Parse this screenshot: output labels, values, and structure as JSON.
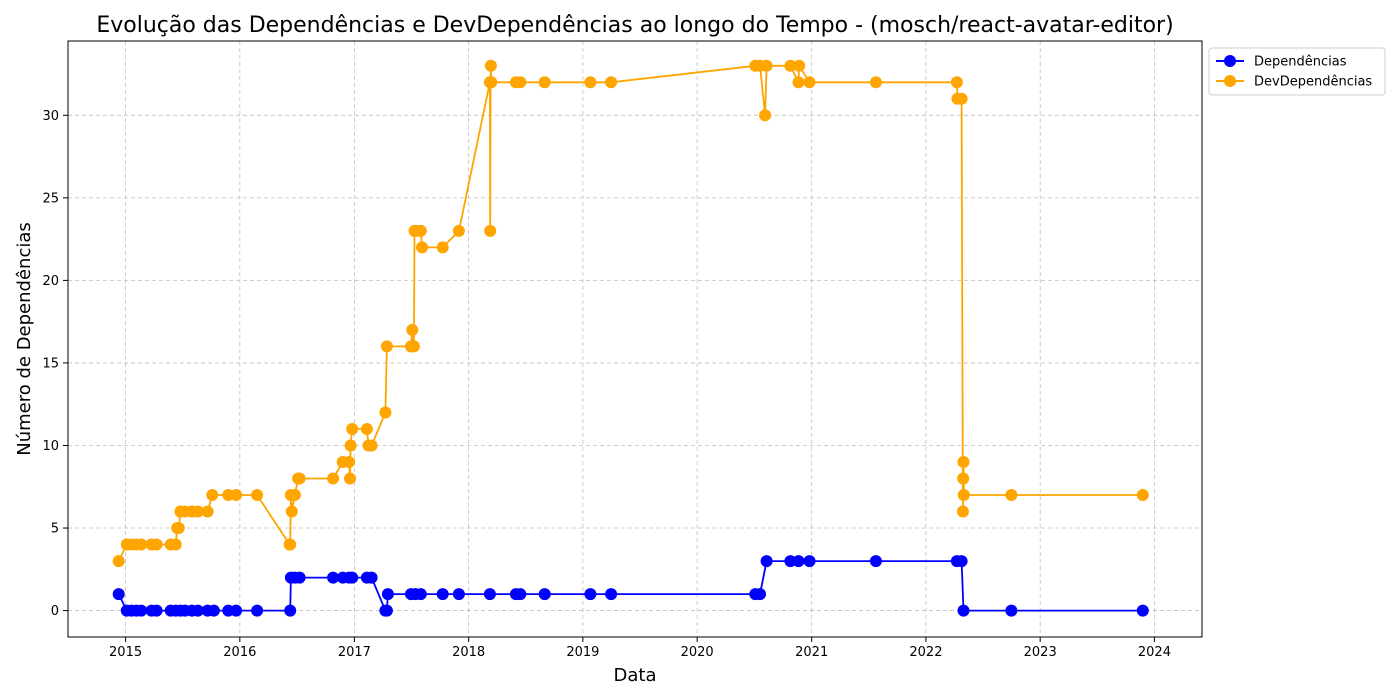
{
  "chart_data": {
    "type": "line",
    "title": "Evolução das Dependências e DevDependências ao longo do Tempo - (mosch/react-avatar-editor)",
    "xlabel": "Data",
    "ylabel": "Número de Dependências",
    "xlim": [
      "2014-07-01",
      "2024-06-01"
    ],
    "ylim": [
      -1.6,
      34.5
    ],
    "x_ticks": [
      "2015",
      "2016",
      "2017",
      "2018",
      "2019",
      "2020",
      "2021",
      "2022",
      "2023",
      "2024"
    ],
    "y_ticks": [
      0,
      5,
      10,
      15,
      20,
      25,
      30
    ],
    "grid": true,
    "legend_position": "outside-top-right",
    "series": [
      {
        "name": "Dependências",
        "color": "#0000ff",
        "points": [
          [
            "2014-12-10",
            1
          ],
          [
            "2015-01-05",
            0
          ],
          [
            "2015-01-20",
            0
          ],
          [
            "2015-02-05",
            0
          ],
          [
            "2015-02-20",
            0
          ],
          [
            "2015-03-25",
            0
          ],
          [
            "2015-04-10",
            0
          ],
          [
            "2015-05-25",
            0
          ],
          [
            "2015-06-10",
            0
          ],
          [
            "2015-06-25",
            0
          ],
          [
            "2015-07-10",
            0
          ],
          [
            "2015-08-01",
            0
          ],
          [
            "2015-08-20",
            0
          ],
          [
            "2015-09-20",
            0
          ],
          [
            "2015-10-10",
            0
          ],
          [
            "2015-11-25",
            0
          ],
          [
            "2015-12-20",
            0
          ],
          [
            "2016-02-25",
            0
          ],
          [
            "2016-06-10",
            0
          ],
          [
            "2016-06-12",
            2
          ],
          [
            "2016-06-25",
            2
          ],
          [
            "2016-07-10",
            2
          ],
          [
            "2016-10-25",
            2
          ],
          [
            "2016-11-25",
            2
          ],
          [
            "2016-12-15",
            2
          ],
          [
            "2016-12-25",
            2
          ],
          [
            "2017-02-10",
            2
          ],
          [
            "2017-02-25",
            2
          ],
          [
            "2017-04-10",
            0
          ],
          [
            "2017-04-15",
            0
          ],
          [
            "2017-04-18",
            1
          ],
          [
            "2017-07-01",
            1
          ],
          [
            "2017-07-15",
            1
          ],
          [
            "2017-08-01",
            1
          ],
          [
            "2017-10-10",
            1
          ],
          [
            "2017-12-01",
            1
          ],
          [
            "2018-03-10",
            1
          ],
          [
            "2018-06-01",
            1
          ],
          [
            "2018-06-15",
            1
          ],
          [
            "2018-09-01",
            1
          ],
          [
            "2019-01-25",
            1
          ],
          [
            "2019-04-01",
            1
          ],
          [
            "2020-07-05",
            1
          ],
          [
            "2020-07-20",
            1
          ],
          [
            "2020-08-10",
            3
          ],
          [
            "2020-10-25",
            3
          ],
          [
            "2020-11-20",
            3
          ],
          [
            "2020-12-25",
            3
          ],
          [
            "2021-07-25",
            3
          ],
          [
            "2022-04-10",
            3
          ],
          [
            "2022-04-25",
            3
          ],
          [
            "2022-05-01",
            0
          ],
          [
            "2022-10-01",
            0
          ],
          [
            "2023-11-25",
            0
          ]
        ]
      },
      {
        "name": "DevDependências",
        "color": "#ffa500",
        "points": [
          [
            "2014-12-10",
            3
          ],
          [
            "2015-01-05",
            4
          ],
          [
            "2015-01-20",
            4
          ],
          [
            "2015-02-05",
            4
          ],
          [
            "2015-02-20",
            4
          ],
          [
            "2015-03-25",
            4
          ],
          [
            "2015-04-10",
            4
          ],
          [
            "2015-05-25",
            4
          ],
          [
            "2015-06-10",
            4
          ],
          [
            "2015-06-15",
            5
          ],
          [
            "2015-06-20",
            5
          ],
          [
            "2015-06-25",
            6
          ],
          [
            "2015-07-10",
            6
          ],
          [
            "2015-08-01",
            6
          ],
          [
            "2015-08-20",
            6
          ],
          [
            "2015-09-20",
            6
          ],
          [
            "2015-10-05",
            7
          ],
          [
            "2015-11-25",
            7
          ],
          [
            "2015-12-20",
            7
          ],
          [
            "2016-02-25",
            7
          ],
          [
            "2016-06-08",
            4
          ],
          [
            "2016-06-10",
            4
          ],
          [
            "2016-06-12",
            7
          ],
          [
            "2016-06-15",
            6
          ],
          [
            "2016-06-25",
            7
          ],
          [
            "2016-07-05",
            8
          ],
          [
            "2016-07-10",
            8
          ],
          [
            "2016-10-25",
            8
          ],
          [
            "2016-11-25",
            9
          ],
          [
            "2016-12-15",
            9
          ],
          [
            "2016-12-18",
            8
          ],
          [
            "2016-12-20",
            10
          ],
          [
            "2016-12-25",
            11
          ],
          [
            "2017-02-10",
            11
          ],
          [
            "2017-02-15",
            10
          ],
          [
            "2017-02-25",
            10
          ],
          [
            "2017-04-10",
            12
          ],
          [
            "2017-04-15",
            16
          ],
          [
            "2017-07-01",
            16
          ],
          [
            "2017-07-05",
            17
          ],
          [
            "2017-07-10",
            16
          ],
          [
            "2017-07-12",
            23
          ],
          [
            "2017-07-20",
            23
          ],
          [
            "2017-08-01",
            23
          ],
          [
            "2017-08-05",
            22
          ],
          [
            "2017-10-10",
            22
          ],
          [
            "2017-12-01",
            23
          ],
          [
            "2018-03-10",
            32
          ],
          [
            "2018-03-11",
            23
          ],
          [
            "2018-03-12",
            32
          ],
          [
            "2018-03-13",
            33
          ],
          [
            "2018-03-14",
            32
          ],
          [
            "2018-06-01",
            32
          ],
          [
            "2018-06-15",
            32
          ],
          [
            "2018-09-01",
            32
          ],
          [
            "2019-01-25",
            32
          ],
          [
            "2019-04-01",
            32
          ],
          [
            "2020-07-05",
            33
          ],
          [
            "2020-07-20",
            33
          ],
          [
            "2020-08-05",
            30
          ],
          [
            "2020-08-10",
            33
          ],
          [
            "2020-10-25",
            33
          ],
          [
            "2020-11-20",
            32
          ],
          [
            "2020-11-22",
            33
          ],
          [
            "2020-12-25",
            32
          ],
          [
            "2021-07-25",
            32
          ],
          [
            "2022-04-10",
            32
          ],
          [
            "2022-04-12",
            31
          ],
          [
            "2022-04-25",
            31
          ],
          [
            "2022-04-29",
            6
          ],
          [
            "2022-04-30",
            8
          ],
          [
            "2022-05-01",
            9
          ],
          [
            "2022-05-02",
            7
          ],
          [
            "2022-10-01",
            7
          ],
          [
            "2023-11-25",
            7
          ]
        ]
      }
    ]
  }
}
